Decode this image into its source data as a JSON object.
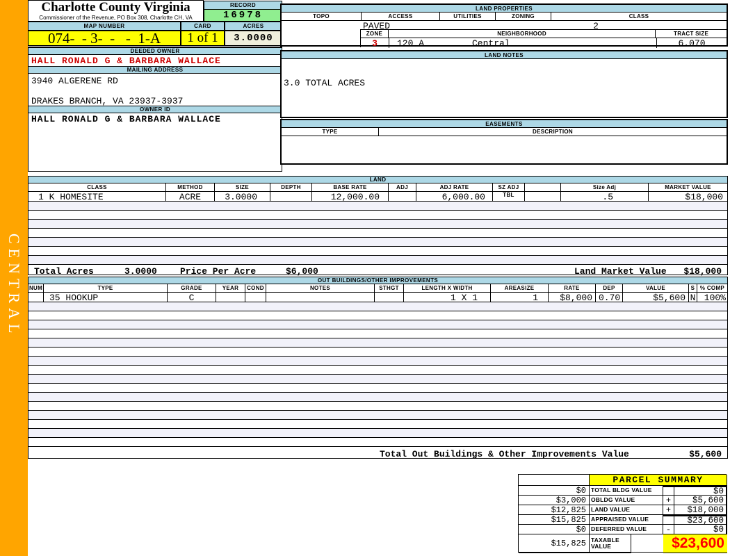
{
  "sidebar": {
    "region_label": "CENTRAL"
  },
  "header": {
    "county_title": "Charlotte County Virginia",
    "commissioner_line": "Commissioner of the Revenue, PO Box 308, Charlotte CH, VA",
    "record": {
      "label": "RECORD",
      "value": "16978"
    },
    "map_number": {
      "label": "MAP NUMBER",
      "value": "074-  - 3-  -   -  1-A"
    },
    "card": {
      "label": "CARD",
      "value": "1 of 1"
    },
    "acres": {
      "label": "ACRES",
      "value": "3.0000"
    }
  },
  "owner": {
    "deeded_owner_label": "DEEDED OWNER",
    "deeded_owner": "HALL RONALD G & BARBARA WALLACE",
    "mailing_address_label": "MAILING ADDRESS",
    "address_line1": "3940 ALGERENE RD",
    "address_line2": "DRAKES BRANCH, VA 23937-3937",
    "owner_id_label": "OWNER ID",
    "owner_id": "HALL RONALD G & BARBARA WALLACE"
  },
  "land_properties": {
    "title": "LAND PROPERTIES",
    "columns": [
      "TOPO",
      "ACCESS",
      "UTILITIES",
      "ZONING",
      "CLASS"
    ],
    "access": "PAVED",
    "class": "2",
    "zone_label": "ZONE",
    "zone": "3",
    "neighborhood_label": "NEIGHBORHOOD",
    "neighborhood_code": "120 A",
    "neighborhood_name": "Central",
    "tract_size_label": "TRACT SIZE",
    "tract_size": "6.070"
  },
  "land_notes": {
    "title": "LAND NOTES",
    "note": "3.0 TOTAL ACRES"
  },
  "easements": {
    "title": "EASEMENTS",
    "columns": [
      "TYPE",
      "DESCRIPTION"
    ]
  },
  "land": {
    "title": "LAND",
    "columns": [
      "CLASS",
      "METHOD",
      "SIZE",
      "DEPTH",
      "BASE RATE",
      "ADJ",
      "ADJ RATE",
      "SZ ADJ TBL",
      "",
      "Size Adj",
      "MARKET VALUE"
    ],
    "rows": [
      {
        "class": "1 K HOMESITE",
        "method": "ACRE",
        "size": "3.0000",
        "depth": "",
        "base_rate": "12,000.00",
        "adj": "",
        "adj_rate": "6,000.00",
        "sz_adj_tbl": "",
        "blank": "",
        "size_adj": ".5",
        "market_value": "$18,000"
      }
    ],
    "empty_row_count": 7,
    "totals": {
      "total_acres_label": "Total Acres",
      "total_acres": "3.0000",
      "price_per_acre_label": "Price Per Acre",
      "price_per_acre": "$6,000",
      "land_market_value_label": "Land Market Value",
      "land_market_value": "$18,000"
    }
  },
  "out_buildings": {
    "title": "OUT BUILDINGS/OTHER IMPROVEMENTS",
    "columns": [
      "NUM",
      "TYPE",
      "GRADE",
      "YEAR",
      "COND",
      "NOTES",
      "STHGT",
      "LENGTH X WIDTH",
      "AREASIZE",
      "RATE",
      "DEP",
      "VALUE",
      "S",
      "% COMP"
    ],
    "rows": [
      {
        "num": "",
        "type": "35 HOOKUP",
        "grade": "C",
        "year": "",
        "cond": "",
        "notes": "",
        "sthgt": "",
        "length_width": "1 X 1",
        "areasize": "1",
        "rate": "$8,000",
        "dep": "0.70",
        "value": "$5,600",
        "s": "N",
        "pct_comp": "100%"
      }
    ],
    "empty_row_count": 16,
    "total_label": "Total Out Buildings & Other Improvements Value",
    "total_value": "$5,600"
  },
  "parcel_summary": {
    "title": "PARCEL SUMMARY",
    "rows": [
      {
        "prior": "$0",
        "label": "TOTAL BLDG VALUE",
        "op": "",
        "value": "$0"
      },
      {
        "prior": "$3,000",
        "label": "OBLDG VALUE",
        "op": "+",
        "value": "$5,600"
      },
      {
        "prior": "$12,825",
        "label": "LAND VALUE",
        "op": "+",
        "value": "$18,000"
      },
      {
        "prior": "$15,825",
        "label": "APPRAISED VALUE",
        "op": "",
        "value": "$23,600"
      },
      {
        "prior": "$0",
        "label": "DEFERRED VALUE",
        "op": "-",
        "value": "$0"
      }
    ],
    "taxable": {
      "prior": "$15,825",
      "label": "TAXABLE VALUE",
      "value": "$23,600"
    }
  },
  "colors": {
    "frame_orange": "#FFA500",
    "section_header_blue": "#ADD8E6",
    "record_green": "#90EE90",
    "highlight_yellow": "#FFFF00",
    "acres_cream": "#F0EFDC",
    "owner_red": "#CC0000",
    "taxable_red": "#FF0000",
    "alt_row": "#F2F2FA"
  }
}
